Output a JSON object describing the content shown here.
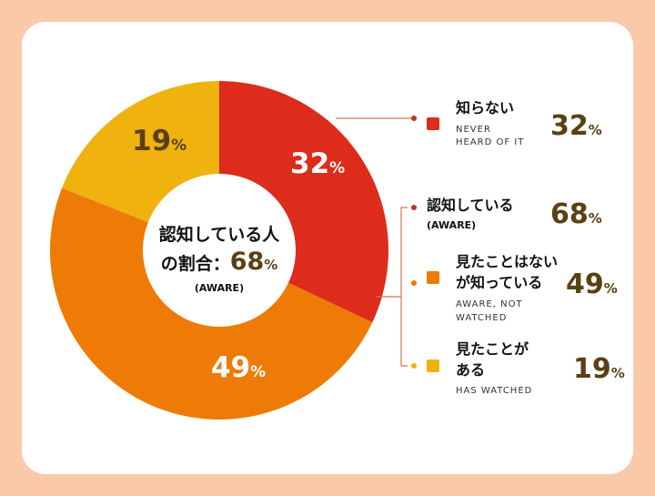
{
  "chart_data": {
    "type": "pie",
    "donut": true,
    "slices": [
      {
        "value": 32,
        "label": "32",
        "unit": "%",
        "color": "#dd2b1c"
      },
      {
        "value": 49,
        "label": "49",
        "unit": "%",
        "color": "#ee7b06"
      },
      {
        "value": 19,
        "label": "19",
        "unit": "%",
        "color": "#efb20f"
      }
    ],
    "center": {
      "line1": "認知している人",
      "line2_prefix": "の割合：",
      "line2_value": "68",
      "line2_unit": "%",
      "line3": "(AWARE)"
    }
  },
  "legend": {
    "never": {
      "jp": "知らない",
      "en1": "NEVER",
      "en2": "HEARD OF IT",
      "value": "32",
      "unit": "%",
      "color": "#dd2b1c"
    },
    "aware": {
      "jp": "認知している",
      "en": "(AWARE)",
      "value": "68",
      "unit": "%"
    },
    "not_watched": {
      "jp1": "見たことはない",
      "jp2": "が知っている",
      "en1": "AWARE, NOT",
      "en2": "WATCHED",
      "value": "49",
      "unit": "%",
      "color": "#ee7b06"
    },
    "watched": {
      "jp1": "見たことが",
      "jp2": "ある",
      "en": "HAS WATCHED",
      "value": "19",
      "unit": "%",
      "color": "#efb20f"
    }
  },
  "colors": {
    "background": "#f9c9a9",
    "card": "#ffffff",
    "text_dark": "#111111",
    "value_text": "#5a4012",
    "connector": "#d07454",
    "dot_red": "#c8321f"
  }
}
